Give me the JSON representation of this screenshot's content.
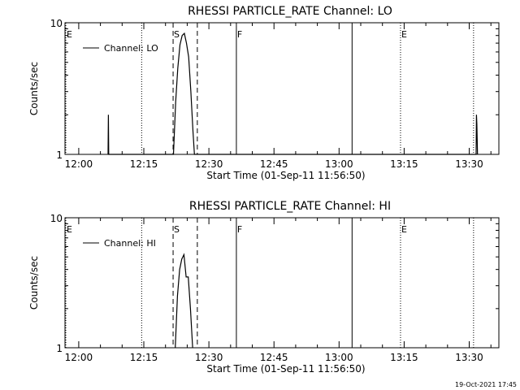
{
  "footer": {
    "timestamp": "19-Oct-2021 17:45"
  },
  "chart_data": [
    {
      "type": "line",
      "title": "RHESSI PARTICLE_RATE Channel: LO",
      "xlabel": "Start Time (01-Sep-11 11:56:50)",
      "ylabel": "Counts/sec",
      "yscale": "log",
      "xlim": [
        "11:56:50",
        "13:36:50"
      ],
      "ylim": [
        1,
        10
      ],
      "x_ticks": [
        "12:00",
        "12:15",
        "12:30",
        "12:45",
        "13:00",
        "13:15",
        "13:30"
      ],
      "y_ticks": [
        "1",
        "10"
      ],
      "legend": {
        "placement": "top-left",
        "entries": [
          "Channel: LO"
        ]
      },
      "markers": [
        {
          "label": "E",
          "time": "11:56:50",
          "style": "dotted"
        },
        {
          "label": "",
          "time": "12:14:30",
          "style": "dotted"
        },
        {
          "label": "S",
          "time": "12:21:45",
          "style": "dashed"
        },
        {
          "label": "",
          "time": "12:27:20",
          "style": "dashed"
        },
        {
          "label": "F",
          "time": "12:36:20",
          "style": "solid"
        },
        {
          "label": "",
          "time": "13:03:00",
          "style": "solid"
        },
        {
          "label": "E",
          "time": "13:14:10",
          "style": "dotted"
        },
        {
          "label": "",
          "time": "13:31:00",
          "style": "dotted"
        }
      ],
      "series": [
        {
          "name": "Channel: LO",
          "points": [
            [
              "12:06:45",
              1
            ],
            [
              "12:06:50",
              2
            ],
            [
              "12:06:55",
              1
            ],
            [
              "12:21:50",
              1
            ],
            [
              "12:22:20",
              2.5
            ],
            [
              "12:22:50",
              4.5
            ],
            [
              "12:23:20",
              6.8
            ],
            [
              "12:23:50",
              8.0
            ],
            [
              "12:24:20",
              8.3
            ],
            [
              "12:24:50",
              7.0
            ],
            [
              "12:25:20",
              5.5
            ],
            [
              "12:25:50",
              3.0
            ],
            [
              "12:26:20",
              1.5
            ],
            [
              "12:26:40",
              1
            ],
            [
              "13:31:35",
              1
            ],
            [
              "13:31:40",
              2.0
            ],
            [
              "13:31:45",
              1.7
            ],
            [
              "13:31:55",
              1
            ]
          ]
        }
      ]
    },
    {
      "type": "line",
      "title": "RHESSI PARTICLE_RATE Channel: HI",
      "xlabel": "Start Time (01-Sep-11 11:56:50)",
      "ylabel": "Counts/sec",
      "yscale": "log",
      "xlim": [
        "11:56:50",
        "13:36:50"
      ],
      "ylim": [
        1,
        10
      ],
      "x_ticks": [
        "12:00",
        "12:15",
        "12:30",
        "12:45",
        "13:00",
        "13:15",
        "13:30"
      ],
      "y_ticks": [
        "1",
        "10"
      ],
      "legend": {
        "placement": "top-left",
        "entries": [
          "Channel: HI"
        ]
      },
      "markers": [
        {
          "label": "E",
          "time": "11:56:50",
          "style": "dotted"
        },
        {
          "label": "",
          "time": "12:14:30",
          "style": "dotted"
        },
        {
          "label": "S",
          "time": "12:21:45",
          "style": "dashed"
        },
        {
          "label": "",
          "time": "12:27:20",
          "style": "dashed"
        },
        {
          "label": "F",
          "time": "12:36:20",
          "style": "solid"
        },
        {
          "label": "",
          "time": "13:03:00",
          "style": "solid"
        },
        {
          "label": "E",
          "time": "13:14:10",
          "style": "dotted"
        },
        {
          "label": "",
          "time": "13:31:00",
          "style": "dotted"
        }
      ],
      "series": [
        {
          "name": "Channel: HI",
          "points": [
            [
              "12:22:15",
              1
            ],
            [
              "12:22:45",
              2.5
            ],
            [
              "12:23:15",
              4.0
            ],
            [
              "12:23:45",
              4.8
            ],
            [
              "12:24:15",
              5.2
            ],
            [
              "12:24:45",
              3.5
            ],
            [
              "12:25:15",
              3.5
            ],
            [
              "12:25:45",
              2.0
            ],
            [
              "12:26:15",
              1
            ]
          ]
        }
      ]
    }
  ]
}
